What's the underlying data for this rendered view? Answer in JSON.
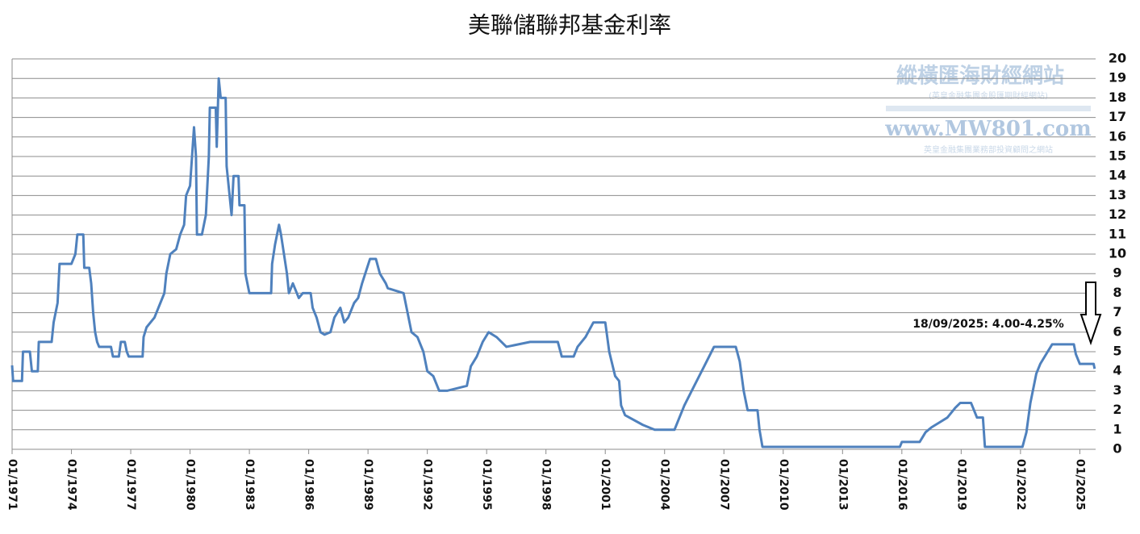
{
  "watermark": {
    "title": "縱橫匯海財經網站",
    "subtitle": "(英皇金融集團金股匯期財經網站)",
    "url": "www.MW801.com",
    "note": "英皇金融集團業務部投資顧問之網站"
  },
  "chart_data": {
    "type": "line",
    "title": "美聯儲聯邦基金利率",
    "annotation": "18/09/2025: 4.00-4.25%",
    "xlim": [
      1971,
      2025.8
    ],
    "ylim": [
      0,
      20
    ],
    "yticks": [
      0,
      1,
      2,
      3,
      4,
      5,
      6,
      7,
      8,
      9,
      10,
      11,
      12,
      13,
      14,
      15,
      16,
      17,
      18,
      19,
      20
    ],
    "xticks": [
      {
        "value": 1971,
        "label": "01/1971"
      },
      {
        "value": 1974,
        "label": "01/1974"
      },
      {
        "value": 1977,
        "label": "01/1977"
      },
      {
        "value": 1980,
        "label": "01/1980"
      },
      {
        "value": 1983,
        "label": "01/1983"
      },
      {
        "value": 1986,
        "label": "01/1986"
      },
      {
        "value": 1989,
        "label": "01/1989"
      },
      {
        "value": 1992,
        "label": "01/1992"
      },
      {
        "value": 1995,
        "label": "01/1995"
      },
      {
        "value": 1998,
        "label": "01/1998"
      },
      {
        "value": 2001,
        "label": "01/2001"
      },
      {
        "value": 2004,
        "label": "01/2004"
      },
      {
        "value": 2007,
        "label": "01/2007"
      },
      {
        "value": 2010,
        "label": "01/2010"
      },
      {
        "value": 2013,
        "label": "01/2013"
      },
      {
        "value": 2016,
        "label": "01/2016"
      },
      {
        "value": 2019,
        "label": "01/2019"
      },
      {
        "value": 2022,
        "label": "01/2022"
      },
      {
        "value": 2025,
        "label": "01/2025"
      }
    ],
    "grid": true,
    "x": [
      1971.0,
      1971.05,
      1971.5,
      1971.55,
      1971.9,
      1972.0,
      1972.3,
      1972.35,
      1973.0,
      1973.1,
      1973.3,
      1973.4,
      1974.0,
      1974.2,
      1974.3,
      1974.6,
      1974.65,
      1974.9,
      1975.0,
      1975.1,
      1975.2,
      1975.3,
      1975.4,
      1976.0,
      1976.1,
      1976.4,
      1976.5,
      1976.7,
      1976.8,
      1976.9,
      1977.6,
      1977.65,
      1977.8,
      1978.0,
      1978.2,
      1978.5,
      1978.7,
      1978.8,
      1979.0,
      1979.3,
      1979.5,
      1979.7,
      1979.8,
      1980.0,
      1980.2,
      1980.3,
      1980.35,
      1980.6,
      1980.8,
      1980.95,
      1981.0,
      1981.3,
      1981.35,
      1981.45,
      1981.55,
      1981.8,
      1981.85,
      1982.0,
      1982.1,
      1982.2,
      1982.45,
      1982.5,
      1982.75,
      1982.8,
      1982.9,
      1983.0,
      1984.1,
      1984.15,
      1984.3,
      1984.5,
      1984.6,
      1984.9,
      1985.0,
      1985.2,
      1985.5,
      1985.7,
      1986.1,
      1986.2,
      1986.4,
      1986.6,
      1986.8,
      1987.1,
      1987.3,
      1987.6,
      1987.8,
      1988.0,
      1988.3,
      1988.5,
      1988.7,
      1989.1,
      1989.4,
      1989.6,
      1989.9,
      1990.0,
      1990.8,
      1991.0,
      1991.2,
      1991.5,
      1991.8,
      1992.0,
      1992.3,
      1992.6,
      1993.0,
      1994.0,
      1994.2,
      1994.5,
      1994.8,
      1995.1,
      1995.5,
      1996.0,
      1997.2,
      1998.6,
      1998.8,
      1999.4,
      1999.6,
      2000.0,
      2000.4,
      2001.0,
      2001.2,
      2001.5,
      2001.7,
      2001.8,
      2002.0,
      2002.9,
      2003.5,
      2004.5,
      2005.0,
      2005.5,
      2006.0,
      2006.5,
      2007.6,
      2007.8,
      2008.0,
      2008.2,
      2008.7,
      2008.8,
      2008.95,
      2015.9,
      2016.0,
      2016.9,
      2017.2,
      2017.5,
      2017.9,
      2018.3,
      2018.7,
      2018.95,
      2019.5,
      2019.6,
      2019.8,
      2020.1,
      2020.2,
      2022.1,
      2022.3,
      2022.5,
      2022.8,
      2023.0,
      2023.3,
      2023.6,
      2024.7,
      2024.8,
      2025.0,
      2025.7,
      2025.75
    ],
    "series": [
      {
        "color": "#4f81bd",
        "values": [
          4.3,
          3.5,
          3.5,
          5.0,
          5.0,
          4.0,
          4.0,
          5.5,
          5.5,
          6.5,
          7.5,
          9.5,
          9.5,
          10.0,
          11.0,
          11.0,
          9.3,
          9.3,
          8.5,
          7.0,
          6.0,
          5.5,
          5.25,
          5.25,
          4.75,
          4.75,
          5.5,
          5.5,
          5.0,
          4.75,
          4.75,
          5.75,
          6.25,
          6.5,
          6.75,
          7.5,
          8.0,
          9.0,
          10.0,
          10.25,
          11.0,
          11.5,
          13.0,
          13.5,
          16.5,
          15.0,
          11.0,
          11.0,
          12.0,
          15.0,
          17.5,
          17.5,
          15.5,
          19.0,
          18.0,
          18.0,
          14.5,
          13.0,
          12.0,
          14.0,
          14.0,
          12.5,
          12.5,
          9.0,
          8.5,
          8.0,
          8.0,
          9.5,
          10.5,
          11.5,
          11.0,
          9.0,
          8.0,
          8.5,
          7.75,
          8.0,
          8.0,
          7.25,
          6.75,
          6.0,
          5.875,
          6.0,
          6.75,
          7.25,
          6.5,
          6.75,
          7.5,
          7.75,
          8.5,
          9.75,
          9.75,
          9.0,
          8.5,
          8.25,
          8.0,
          7.0,
          6.0,
          5.75,
          5.0,
          4.0,
          3.75,
          3.0,
          3.0,
          3.25,
          4.25,
          4.75,
          5.5,
          6.0,
          5.75,
          5.25,
          5.5,
          5.5,
          4.75,
          4.75,
          5.25,
          5.75,
          6.5,
          6.5,
          5.0,
          3.75,
          3.5,
          2.25,
          1.75,
          1.25,
          1.0,
          1.0,
          2.25,
          3.25,
          4.25,
          5.25,
          5.25,
          4.5,
          3.0,
          2.0,
          2.0,
          1.0,
          0.125,
          0.125,
          0.375,
          0.375,
          0.875,
          1.125,
          1.375,
          1.625,
          2.125,
          2.375,
          2.375,
          2.125,
          1.625,
          1.625,
          0.125,
          0.125,
          0.875,
          2.375,
          3.875,
          4.375,
          4.875,
          5.375,
          5.375,
          4.875,
          4.375,
          4.375,
          4.125
        ]
      }
    ]
  }
}
